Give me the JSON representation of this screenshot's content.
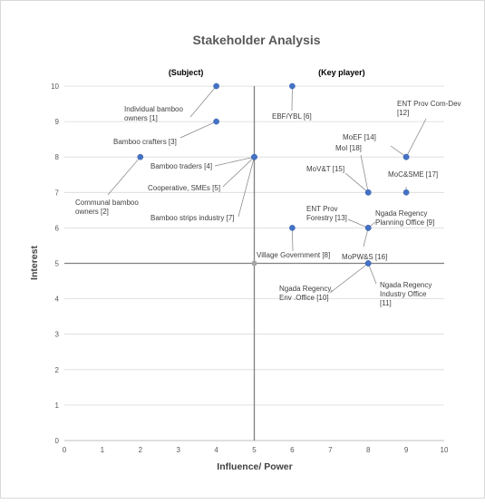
{
  "chart_data": {
    "type": "scatter",
    "title": "Stakeholder Analysis",
    "xlabel": "Influence/ Power",
    "ylabel": "Interest",
    "xlim": [
      0,
      10
    ],
    "ylim": [
      0,
      10
    ],
    "x_ticks": [
      "0",
      "1",
      "2",
      "3",
      "4",
      "5",
      "6",
      "7",
      "8",
      "9",
      "10"
    ],
    "y_ticks": [
      "0",
      "1",
      "2",
      "3",
      "4",
      "5",
      "6",
      "7",
      "8",
      "9",
      "10"
    ],
    "grid": "horizontal",
    "divider_lines": {
      "x": 5,
      "y": 5
    },
    "quadrant_labels": [
      {
        "text": "(Subject)",
        "x": 3.2,
        "y": 10.25
      },
      {
        "text": "(Key player)",
        "x": 7.3,
        "y": 10.25
      }
    ],
    "colors": {
      "point": "#4472c4",
      "center_point": "#a5a5a5",
      "gridline": "#d9d9d9",
      "divider": "#808080",
      "leader": "#808080"
    },
    "points": [
      {
        "x": 4,
        "y": 10,
        "label": [
          "Individual bamboo",
          "owners [1]"
        ]
      },
      {
        "x": 2,
        "y": 8,
        "label": [
          "Communal bamboo",
          "owners [2]"
        ]
      },
      {
        "x": 4,
        "y": 9,
        "label": [
          "Bamboo crafters [3]"
        ]
      },
      {
        "x": 5,
        "y": 8,
        "label": [
          "Bamboo traders [4]"
        ]
      },
      {
        "x": 5,
        "y": 8,
        "label": [
          "Cooperative, SMEs [5]"
        ]
      },
      {
        "x": 6,
        "y": 10,
        "label": [
          "EBF/YBL [6]"
        ]
      },
      {
        "x": 5,
        "y": 8,
        "label": [
          "Bamboo strips industry [7]"
        ]
      },
      {
        "x": 6,
        "y": 6,
        "label": [
          "Village Government [8]"
        ]
      },
      {
        "x": 8,
        "y": 6,
        "label": [
          "Ngada Regency",
          "Planning Office [9]"
        ]
      },
      {
        "x": 8,
        "y": 5,
        "label": [
          "Ngada Regency,",
          "Env .Office [10]"
        ]
      },
      {
        "x": 8,
        "y": 5,
        "label": [
          "Ngada Regency",
          "Industry Office",
          "[11]"
        ]
      },
      {
        "x": 9,
        "y": 8,
        "label": [
          "ENT Prov Com-Dev",
          "[12]"
        ]
      },
      {
        "x": 8,
        "y": 6,
        "label": [
          "ENT Prov",
          "Forestry [13]"
        ]
      },
      {
        "x": 9,
        "y": 8,
        "label": [
          "MoEF [14]"
        ]
      },
      {
        "x": 8,
        "y": 7,
        "label": [
          "MoV&T [15]"
        ]
      },
      {
        "x": 8,
        "y": 6,
        "label": [
          "MoPW&S [16]"
        ]
      },
      {
        "x": 9,
        "y": 7,
        "label": [
          "MoC&SME [17]"
        ]
      },
      {
        "x": 8,
        "y": 7,
        "label": [
          "MoI [18]"
        ]
      }
    ]
  }
}
